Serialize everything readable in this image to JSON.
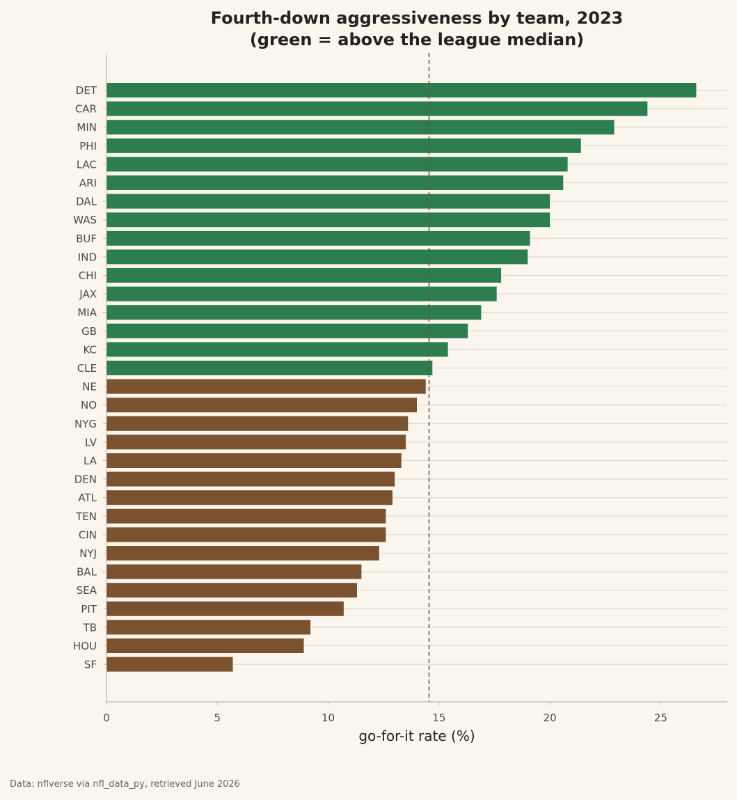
{
  "chart_data": {
    "type": "bar",
    "orientation": "horizontal",
    "title": [
      "Fourth-down aggressiveness by team, 2023",
      "(green = above the league median)"
    ],
    "xlabel": "go-for-it rate (%)",
    "ylabel": "",
    "xlim": [
      0,
      28
    ],
    "xticks": [
      0,
      5,
      10,
      15,
      20,
      25
    ],
    "median": 14.55,
    "grid": "horizontal lines per category",
    "categories": [
      "DET",
      "CAR",
      "MIN",
      "PHI",
      "LAC",
      "ARI",
      "DAL",
      "WAS",
      "BUF",
      "IND",
      "CHI",
      "JAX",
      "MIA",
      "GB",
      "KC",
      "CLE",
      "NE",
      "NO",
      "NYG",
      "LV",
      "LA",
      "DEN",
      "ATL",
      "TEN",
      "CIN",
      "NYJ",
      "BAL",
      "SEA",
      "PIT",
      "TB",
      "HOU",
      "SF"
    ],
    "values": [
      26.6,
      24.4,
      22.9,
      21.4,
      20.8,
      20.6,
      20.0,
      20.0,
      19.1,
      19.0,
      17.8,
      17.6,
      16.9,
      16.3,
      15.4,
      14.7,
      14.4,
      14.0,
      13.6,
      13.5,
      13.3,
      13.0,
      12.9,
      12.6,
      12.6,
      12.3,
      11.5,
      11.3,
      10.7,
      9.2,
      8.9,
      5.7
    ],
    "colors": {
      "above": "#2e7d4f",
      "below": "#7a5230"
    }
  },
  "source": "Data: nflverse via nfl_data_py, retrieved June 2026"
}
